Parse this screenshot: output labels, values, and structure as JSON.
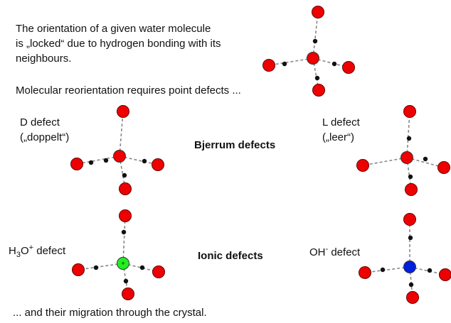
{
  "intro": {
    "lines": [
      "The orientation of a given water molecule",
      "is „locked“ due to hydrogen bonding with its",
      "neighbours."
    ],
    "note": "Molecular reorientation requires point defects ..."
  },
  "bjerrum": {
    "title": "Bjerrum defects",
    "d_defect": [
      "D defect",
      "(„doppelt“)"
    ],
    "l_defect": [
      "L defect",
      "(„leer“)"
    ]
  },
  "ionic": {
    "title": "Ionic defects",
    "h3o": [
      "H",
      "3",
      "O",
      "+",
      " defect"
    ],
    "oh": [
      "OH",
      "-",
      " defect"
    ],
    "h3o_charge": "+"
  },
  "footer": "... and their migration through the crystal."
}
